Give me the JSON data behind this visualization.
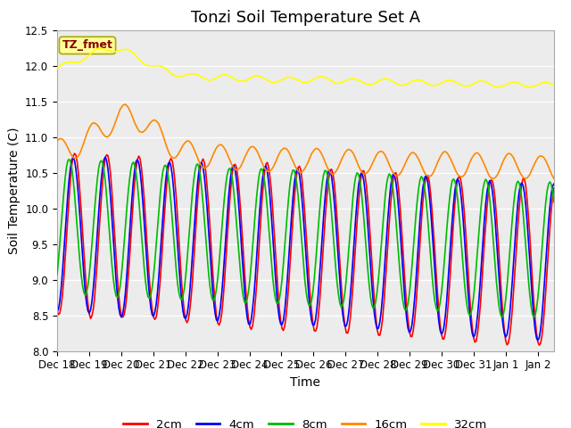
{
  "title": "Tonzi Soil Temperature Set A",
  "xlabel": "Time",
  "ylabel": "Soil Temperature (C)",
  "ylim": [
    8.0,
    12.5
  ],
  "n_days": 15.5,
  "xtick_labels": [
    "Dec 18",
    "Dec 19",
    "Dec 20",
    "Dec 21",
    "Dec 22",
    "Dec 23",
    "Dec 24",
    "Dec 25",
    "Dec 26",
    "Dec 27",
    "Dec 28",
    "Dec 29",
    "Dec 30",
    "Dec 31",
    "Jan 1",
    "Jan 2"
  ],
  "colors": {
    "2cm": "#ff0000",
    "4cm": "#0000ff",
    "8cm": "#00bb00",
    "16cm": "#ff8800",
    "32cm": "#ffff00"
  },
  "legend_label": "TZ_fmet",
  "legend_box_color": "#ffff99",
  "legend_box_edge": "#aaaa00",
  "legend_text_color": "#880000",
  "plot_bg_color": "#ececec",
  "title_fontsize": 13,
  "axis_fontsize": 10,
  "tick_fontsize": 8.5
}
